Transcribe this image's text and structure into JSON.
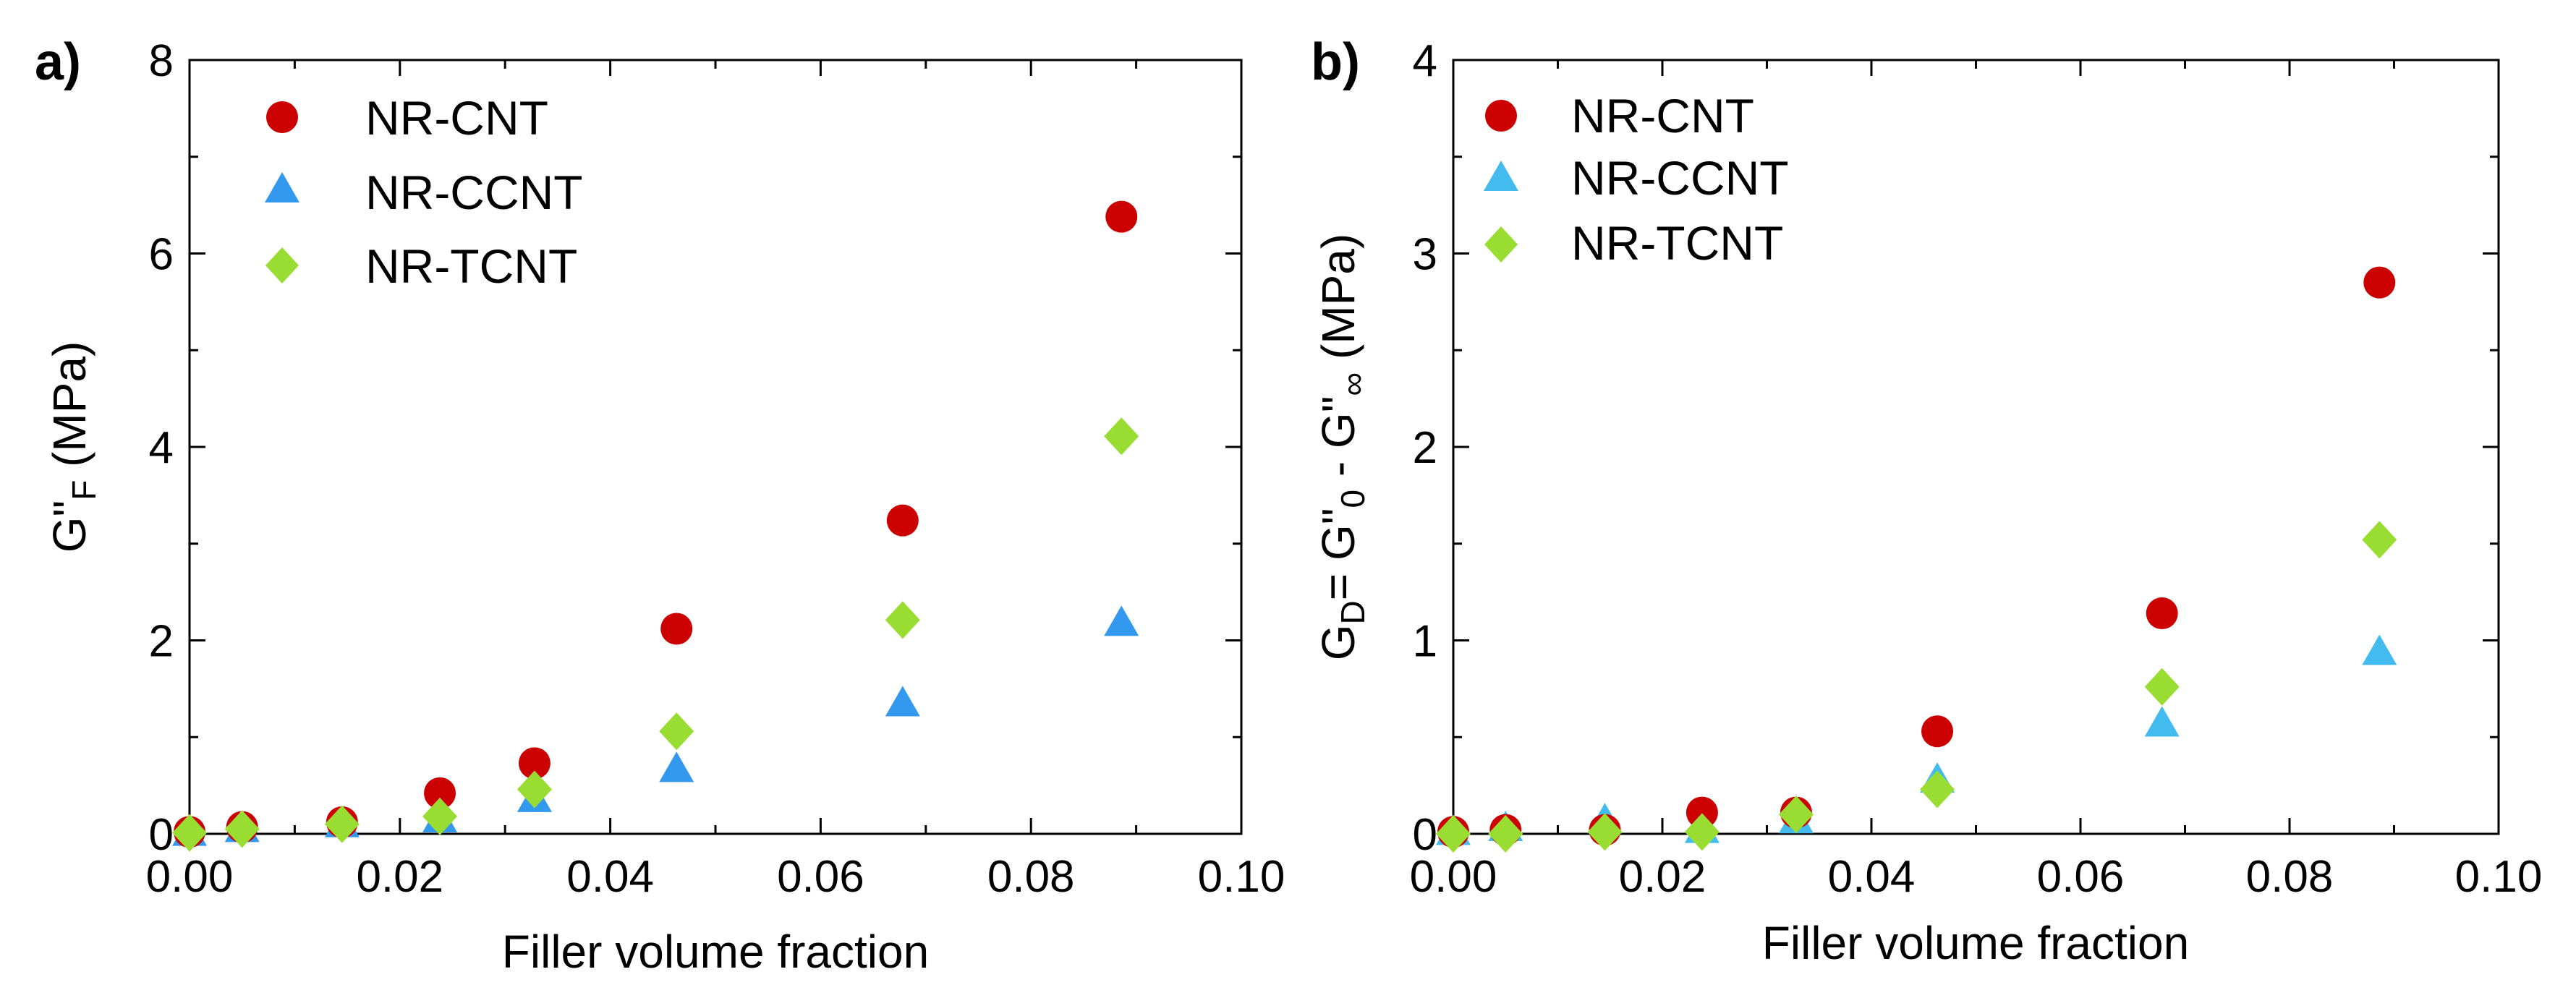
{
  "chart_data": [
    {
      "panel": "a)",
      "type": "scatter",
      "title": "",
      "xlabel": "Filler volume fraction",
      "ylabel": "G\"F (MPa)",
      "ylabel_parts": {
        "main": "G\"",
        "sub": "F",
        "unit": " (MPa)"
      },
      "xlim": [
        0,
        0.1
      ],
      "ylim": [
        0,
        8
      ],
      "xticks": [
        0,
        0.02,
        0.04,
        0.06,
        0.08,
        0.1
      ],
      "xtick_labels": [
        "0.00",
        "0.02",
        "0.04",
        "0.06",
        "0.08",
        "0.10"
      ],
      "yticks": [
        0,
        2,
        4,
        6,
        8
      ],
      "ytick_labels": [
        "0",
        "2",
        "4",
        "6",
        "8"
      ],
      "legend_position": "top-left",
      "grid": false,
      "series": [
        {
          "name": "NR-CNT",
          "marker": "circle",
          "color": "#cc0000",
          "x": [
            0,
            0.005,
            0.0145,
            0.0238,
            0.0328,
            0.0463,
            0.0678,
            0.0886
          ],
          "y": [
            0.02,
            0.07,
            0.12,
            0.42,
            0.73,
            2.12,
            3.24,
            6.38
          ]
        },
        {
          "name": "NR-CCNT",
          "marker": "triangle",
          "color": "#3399ee",
          "x": [
            0,
            0.005,
            0.0145,
            0.0238,
            0.0328,
            0.0463,
            0.0678,
            0.0886
          ],
          "y": [
            0.01,
            0.05,
            0.1,
            0.15,
            0.36,
            0.67,
            1.35,
            2.18
          ]
        },
        {
          "name": "NR-TCNT",
          "marker": "diamond",
          "color": "#99dd33",
          "x": [
            0,
            0.005,
            0.0145,
            0.0238,
            0.0328,
            0.0463,
            0.0678,
            0.0886
          ],
          "y": [
            0.01,
            0.05,
            0.1,
            0.18,
            0.46,
            1.06,
            2.21,
            4.11
          ]
        }
      ]
    },
    {
      "panel": "b)",
      "type": "scatter",
      "title": "",
      "xlabel": "Filler volume fraction",
      "ylabel": "GD= G\"0 - G\"∞ (MPa)",
      "ylabel_parts": {
        "g": "G",
        "sub1": "D",
        "eq": "= G\"",
        "sub2": "0",
        "minus": " - G\"",
        "sub3": "∞",
        "unit": " (MPa)"
      },
      "xlim": [
        0,
        0.1
      ],
      "ylim": [
        0,
        4
      ],
      "xticks": [
        0,
        0.02,
        0.04,
        0.06,
        0.08,
        0.1
      ],
      "xtick_labels": [
        "0.00",
        "0.02",
        "0.04",
        "0.06",
        "0.08",
        "0.10"
      ],
      "yticks": [
        0,
        1,
        2,
        3,
        4
      ],
      "ytick_labels": [
        "0",
        "1",
        "2",
        "3",
        "4"
      ],
      "legend_position": "top-left",
      "grid": false,
      "series": [
        {
          "name": "NR-CNT",
          "marker": "circle",
          "color": "#cc0000",
          "x": [
            0,
            0.005,
            0.0145,
            0.0238,
            0.0328,
            0.0463,
            0.0678,
            0.0886
          ],
          "y": [
            0.01,
            0.02,
            0.02,
            0.11,
            0.11,
            0.53,
            1.14,
            2.85
          ]
        },
        {
          "name": "NR-CCNT",
          "marker": "triangle",
          "color": "#44bbee",
          "x": [
            0,
            0.005,
            0.0145,
            0.0238,
            0.0328,
            0.0463,
            0.0678,
            0.0886
          ],
          "y": [
            0.01,
            0.03,
            0.07,
            0.02,
            0.07,
            0.28,
            0.57,
            0.94
          ]
        },
        {
          "name": "NR-TCNT",
          "marker": "diamond",
          "color": "#99dd33",
          "x": [
            0,
            0.005,
            0.0145,
            0.0238,
            0.0328,
            0.0463,
            0.0678,
            0.0886
          ],
          "y": [
            0.0,
            0.0,
            0.01,
            0.01,
            0.1,
            0.23,
            0.76,
            1.52
          ]
        }
      ]
    }
  ]
}
